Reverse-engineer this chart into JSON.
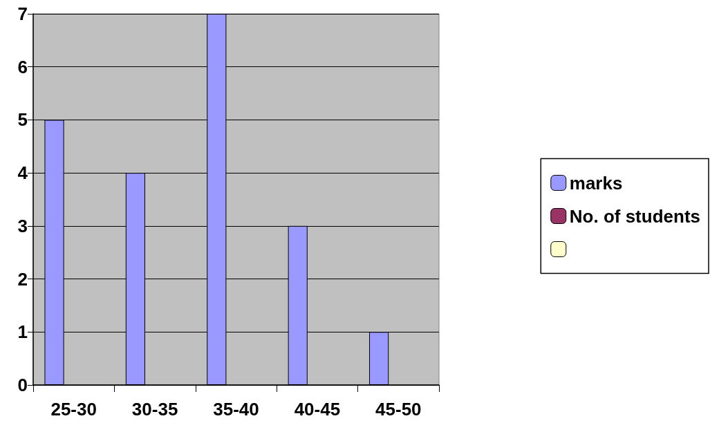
{
  "chart_data": {
    "type": "bar",
    "categories": [
      "25-30",
      "30-35",
      "35-40",
      "40-45",
      "45-50"
    ],
    "series": [
      {
        "name": "marks",
        "color": "#9999ff",
        "values": [
          5,
          4,
          7,
          3,
          1
        ]
      },
      {
        "name": "No. of students",
        "color": "#993366",
        "values": [
          null,
          null,
          null,
          null,
          null
        ]
      },
      {
        "color": "#ffffcc",
        "values": [
          null,
          null,
          null,
          null,
          null
        ]
      }
    ],
    "ylim": [
      0,
      7
    ],
    "yticks": [
      0,
      1,
      2,
      3,
      4,
      5,
      6,
      7
    ],
    "grid": "y",
    "legend": "right"
  }
}
